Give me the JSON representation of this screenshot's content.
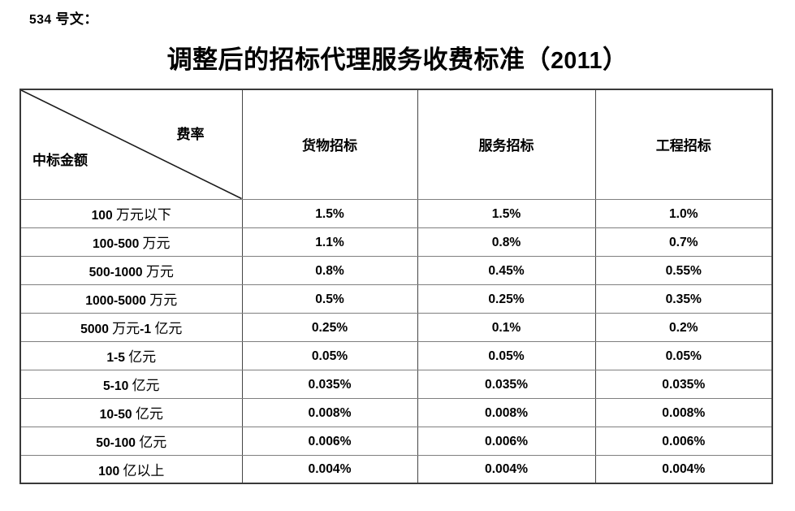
{
  "doc": {
    "doc_number_label": "534 号文：",
    "title": "调整后的招标代理服务收费标准（2011）"
  },
  "colors": {
    "text": "#000000",
    "border_outer": "#3a3a3a",
    "border_inner_vertical": "#454545",
    "border_inner_horizontal": "#7f7f7f",
    "background": "#ffffff"
  },
  "table": {
    "corner": {
      "top_right_label": "费率",
      "bottom_left_label": "中标金额"
    },
    "columns": [
      "货物招标",
      "服务招标",
      "工程招标"
    ],
    "rows": [
      {
        "label": "100 万元以下",
        "values": [
          "1.5%",
          "1.5%",
          "1.0%"
        ]
      },
      {
        "label": "100-500 万元",
        "values": [
          "1.1%",
          "0.8%",
          "0.7%"
        ]
      },
      {
        "label": "500-1000 万元",
        "values": [
          "0.8%",
          "0.45%",
          "0.55%"
        ]
      },
      {
        "label": "1000-5000 万元",
        "values": [
          "0.5%",
          "0.25%",
          "0.35%"
        ]
      },
      {
        "label": "5000 万元-1 亿元",
        "values": [
          "0.25%",
          "0.1%",
          "0.2%"
        ]
      },
      {
        "label": "1-5 亿元",
        "values": [
          "0.05%",
          "0.05%",
          "0.05%"
        ]
      },
      {
        "label": "5-10 亿元",
        "values": [
          "0.035%",
          "0.035%",
          "0.035%"
        ]
      },
      {
        "label": "10-50 亿元",
        "values": [
          "0.008%",
          "0.008%",
          "0.008%"
        ]
      },
      {
        "label": "50-100 亿元",
        "values": [
          "0.006%",
          "0.006%",
          "0.006%"
        ]
      },
      {
        "label": "100 亿以上",
        "values": [
          "0.004%",
          "0.004%",
          "0.004%"
        ]
      }
    ]
  }
}
